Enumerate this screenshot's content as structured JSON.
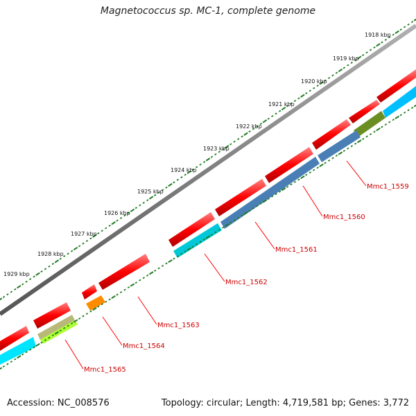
{
  "title": "Magnetococcus sp. MC-1, complete genome",
  "footer": {
    "accession": "Accession: NC_008576",
    "summary": "Topology: circular; Length: 4,719,581 bp; Genes: 3,772"
  },
  "scale_labels": [
    "1918 kbp",
    "1919 kbp",
    "1920 kbp",
    "1921 kbp",
    "1922 kbp",
    "1923 kbp",
    "1924 kbp",
    "1925 kbp",
    "1926 kbp",
    "1927 kbp",
    "1928 kbp",
    "1929 kbp"
  ],
  "gene_labels": [
    "Mmc1_1559",
    "Mmc1_1560",
    "Mmc1_1561",
    "Mmc1_1562",
    "Mmc1_1563",
    "Mmc1_1564",
    "Mmc1_1565"
  ],
  "colors": {
    "backbone": "#808080",
    "forward_feature": "#ff0000",
    "label_text": "#cc0000",
    "leader_line": "#ff0000",
    "ticks": "#1f7a1f",
    "cds_blue": "#4a7fb5",
    "cds_cyan": "#00c8d8",
    "cds_sky": "#00bfff",
    "cds_olive": "#6b8e23",
    "cds_orange": "#ff8c00",
    "cds_khaki": "#b8b878",
    "cds_lime": "#adff2f"
  }
}
